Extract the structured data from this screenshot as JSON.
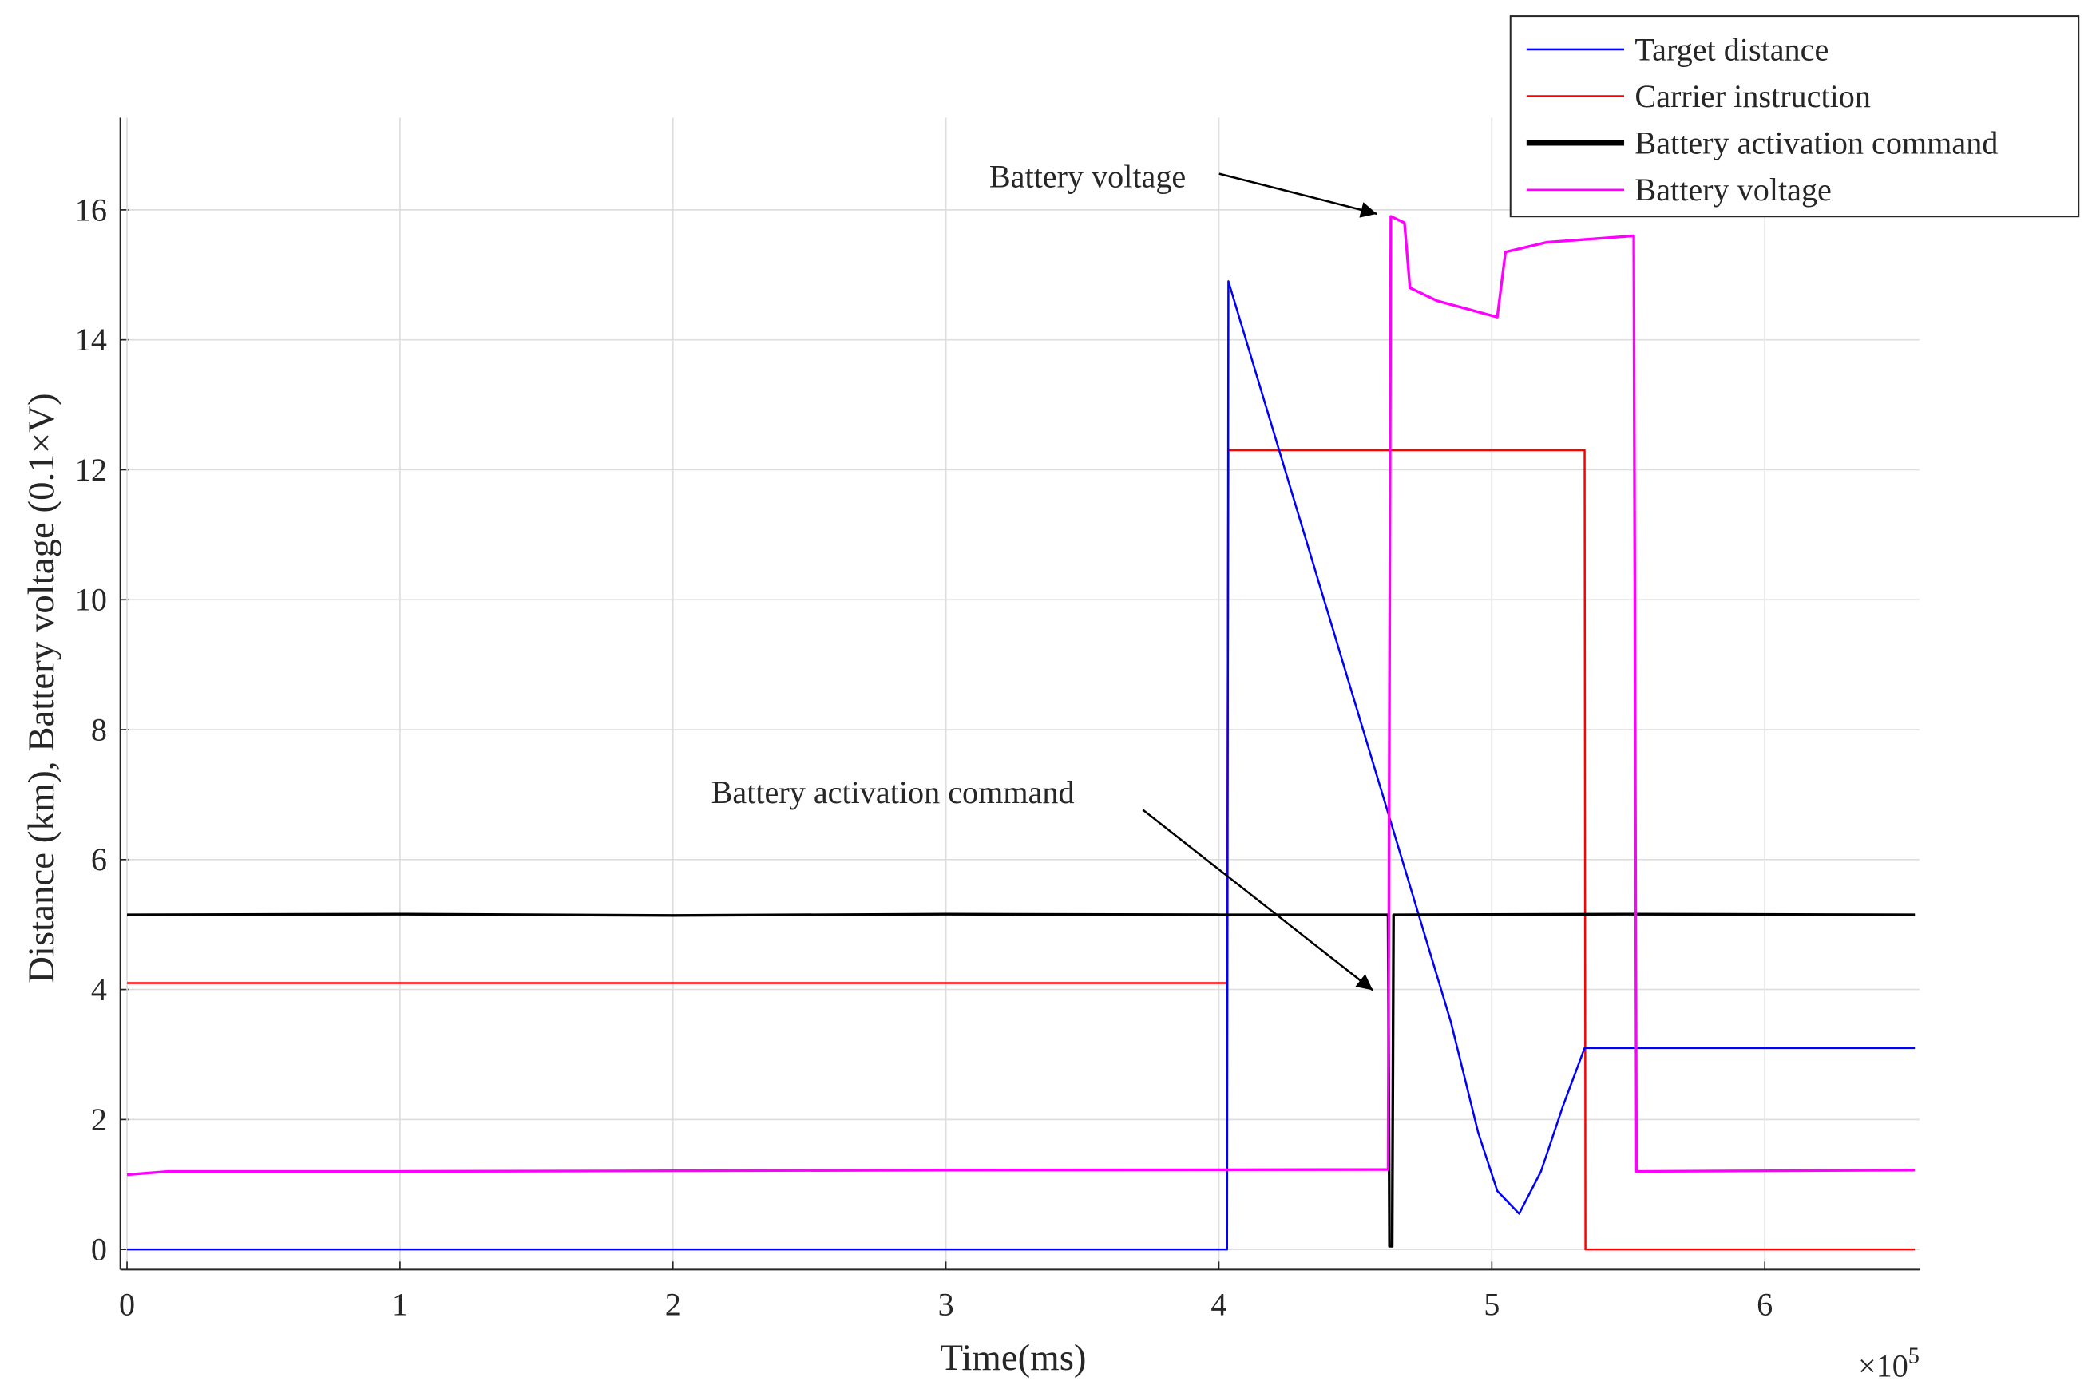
{
  "chart_data": {
    "type": "line",
    "xlabel": "Time(ms)",
    "ylabel": "Distance (km), Battery voltage (0.1×V)",
    "x_multiplier": {
      "base": "×10",
      "exponent": "5"
    },
    "xlim": [
      -2450,
      656700
    ],
    "ylim": [
      -0.31,
      17.42
    ],
    "xticks": [
      0,
      {
        "value": 100000,
        "label": "1"
      },
      {
        "value": 200000,
        "label": "2"
      },
      {
        "value": 300000,
        "label": "3"
      },
      {
        "value": 400000,
        "label": "4"
      },
      {
        "value": 500000,
        "label": "5"
      },
      {
        "value": 600000,
        "label": "6"
      }
    ],
    "yticks": [
      0,
      2,
      4,
      6,
      8,
      10,
      12,
      14,
      16
    ],
    "grid": true,
    "legend": "northeast",
    "series": [
      {
        "name": "Target distance",
        "color": "#0000ff",
        "x": [
          0,
          403000,
          403500,
          485000,
          495000,
          502000,
          510000,
          518000,
          526000,
          534000,
          655000
        ],
        "values": [
          0,
          0,
          14.9,
          3.5,
          1.8,
          0.9,
          0.55,
          1.2,
          2.2,
          3.1,
          3.1
        ]
      },
      {
        "name": "Carrier instruction",
        "color": "#ff0000",
        "x": [
          0,
          403000,
          403500,
          534000,
          534300,
          655000
        ],
        "values": [
          4.1,
          4.1,
          12.3,
          12.3,
          0,
          0
        ]
      },
      {
        "name": "Battery activation command",
        "color": "#000000",
        "x": [
          0,
          100000,
          200000,
          300000,
          400000,
          462000,
          462500,
          463500,
          464000,
          550000,
          655000
        ],
        "values": [
          5.15,
          5.16,
          5.14,
          5.16,
          5.15,
          5.15,
          0.05,
          0.05,
          5.15,
          5.16,
          5.15
        ]
      },
      {
        "name": "Battery voltage",
        "color": "#ff00ff",
        "x": [
          0,
          15000,
          100000,
          300000,
          462000,
          463000,
          468000,
          470000,
          480000,
          502000,
          505000,
          520000,
          552000,
          553000,
          655000
        ],
        "values": [
          1.15,
          1.2,
          1.2,
          1.22,
          1.23,
          15.9,
          15.8,
          14.8,
          14.6,
          14.35,
          15.35,
          15.5,
          15.6,
          1.2,
          1.22
        ]
      }
    ],
    "annotations": [
      "Battery voltage",
      "Battery activation command"
    ]
  }
}
